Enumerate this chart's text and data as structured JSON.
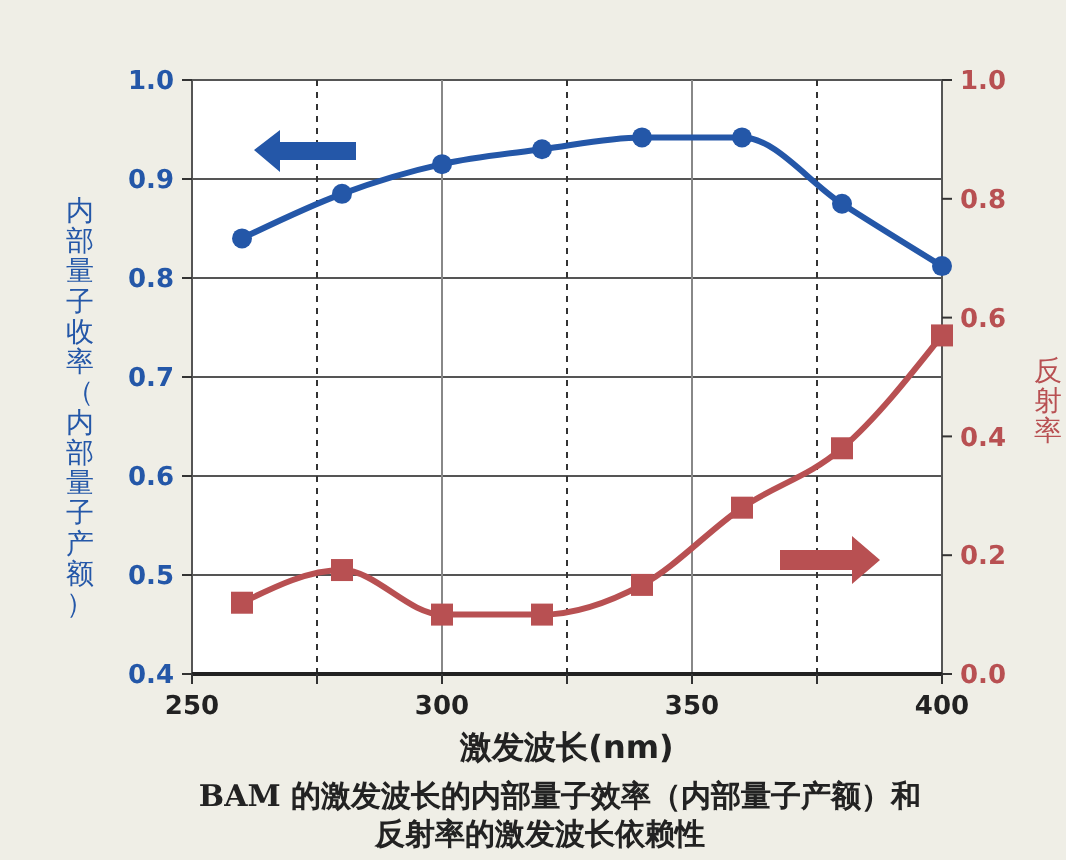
{
  "chart_data": {
    "type": "line",
    "title": "BAM 的激发波长的内部量子效率（内部量子产额）和",
    "subtitle": "反射率的激发波长依赖性",
    "xlabel": "激发波长(nm)",
    "ylabel": "内部量子收率（内部量子产额）",
    "y2label": "反射率",
    "x": [
      260,
      280,
      300,
      320,
      340,
      360,
      380,
      400
    ],
    "series": [
      {
        "color": "#2457a8",
        "marker": "circle",
        "values": [
          0.84,
          0.885,
          0.915,
          0.93,
          0.942,
          0.942,
          0.875,
          0.812
        ]
      },
      {
        "color": "#b85052",
        "marker": "square",
        "axis": "y2",
        "values": [
          0.12,
          0.175,
          0.1,
          0.1,
          0.15,
          0.28,
          0.38,
          0.57
        ]
      }
    ],
    "xlim": [
      250,
      400
    ],
    "xticks": [
      250,
      {
        "value": 275,
        "label": null
      },
      300,
      {
        "value": 325,
        "label": null
      },
      350,
      {
        "value": 375,
        "label": null
      },
      400
    ],
    "ylim": [
      0.4,
      1.0
    ],
    "yticks": [
      {
        "value": 0.4,
        "label": "0.4"
      },
      {
        "value": 0.5,
        "label": "0.5"
      },
      {
        "value": 0.6,
        "label": "0.6"
      },
      {
        "value": 0.7,
        "label": "0.7"
      },
      {
        "value": 0.8,
        "label": "0.8"
      },
      {
        "value": 0.9,
        "label": "0.9"
      },
      {
        "value": 1.0,
        "label": "1.0"
      }
    ],
    "y2lim": [
      0,
      1.0
    ],
    "y2ticks": [
      {
        "value": 0,
        "label": "0.0"
      },
      {
        "value": 0.2,
        "label": "0.2"
      },
      {
        "value": 0.4,
        "label": "0.4"
      },
      {
        "value": 0.6,
        "label": "0.6"
      },
      {
        "value": 0.8,
        "label": "0.8"
      },
      {
        "value": 1.0,
        "label": "1.0"
      }
    ],
    "grid": true
  }
}
